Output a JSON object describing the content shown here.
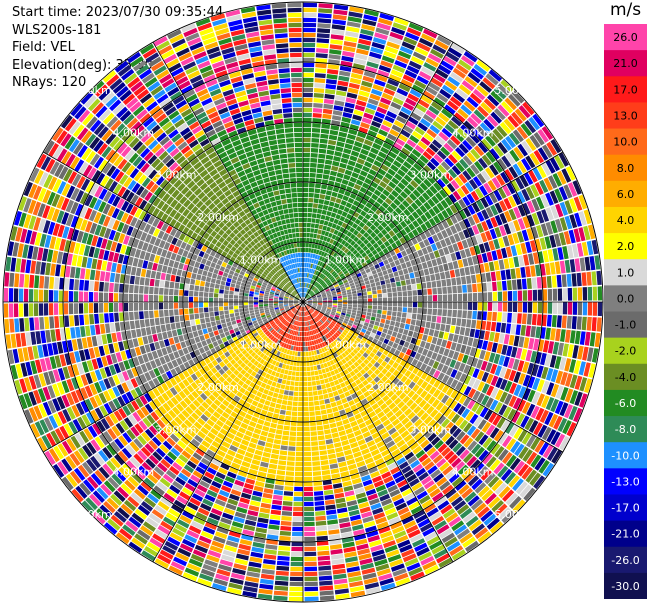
{
  "header": {
    "start_time": "Start time: 2023/07/30 09:35:44",
    "instrument": "WLS200s-181",
    "field": "Field: VEL",
    "elevation": "Elevation(deg): 35.30",
    "nrays": "NRays: 120"
  },
  "colorbar": {
    "unit": "m/s",
    "levels": [
      {
        "label": "26.0",
        "color": "#ff44aa"
      },
      {
        "label": "21.0",
        "color": "#e00060"
      },
      {
        "label": "17.0",
        "color": "#ff1a1a"
      },
      {
        "label": "13.0",
        "color": "#ff3d1a"
      },
      {
        "label": "10.0",
        "color": "#ff6a1a"
      },
      {
        "label": "8.0",
        "color": "#ff8c00"
      },
      {
        "label": "6.0",
        "color": "#ffad00"
      },
      {
        "label": "4.0",
        "color": "#ffd400"
      },
      {
        "label": "2.0",
        "color": "#ffff00"
      },
      {
        "label": "1.0",
        "color": "#d9d9d9"
      },
      {
        "label": "0.0",
        "color": "#7f7f7f"
      },
      {
        "label": "-1.0",
        "color": "#6b6b6b"
      },
      {
        "label": "-2.0",
        "color": "#a8d21e"
      },
      {
        "label": "-4.0",
        "color": "#6b8e23"
      },
      {
        "label": "-6.0",
        "color": "#228b22"
      },
      {
        "label": "-8.0",
        "color": "#2e8b57"
      },
      {
        "label": "-10.0",
        "color": "#1e90ff"
      },
      {
        "label": "-13.0",
        "color": "#0000ff"
      },
      {
        "label": "-17.0",
        "color": "#0000cd"
      },
      {
        "label": "-21.0",
        "color": "#00008b"
      },
      {
        "label": "-26.0",
        "color": "#191970"
      },
      {
        "label": "-30.0",
        "color": "#101050"
      }
    ]
  },
  "chart_data": {
    "type": "heatmap",
    "projection": "polar",
    "field": "VEL",
    "nrays": 120,
    "range_rings_km": [
      1.0,
      2.0,
      3.0,
      4.0,
      5.0
    ],
    "ring_labels": [
      "1.00km",
      "2.00km",
      "3.00km",
      "4.00km",
      "5.00km"
    ],
    "max_range_km": 5.0,
    "grid": true,
    "velocity_pattern": {
      "near_range_km": 3.0,
      "north_sector": "-6.0",
      "north_core": "-10.0",
      "northwest_fringe": "-4.0",
      "south_sector": "4.0",
      "south_core": "13.0",
      "east_west_transition": "0.0",
      "far_range": "noise"
    }
  }
}
